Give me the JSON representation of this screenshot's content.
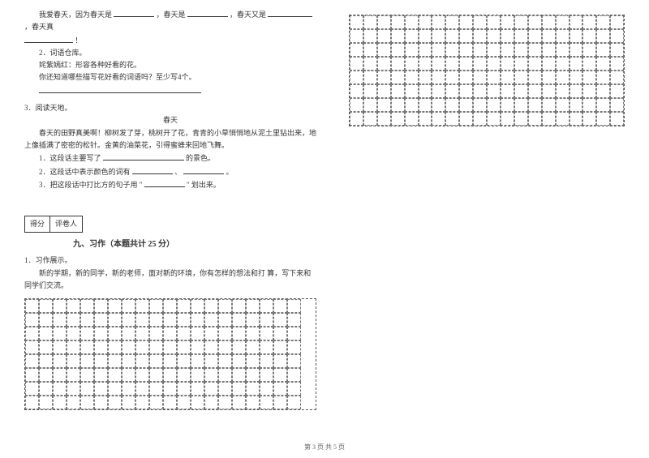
{
  "line1": {
    "prefix": "我爱春天，因为春天是",
    "mid1": "，春天是",
    "mid2": "，春天又是",
    "suffix": "，春天真"
  },
  "line1b": "！",
  "item2_title": "2．词语仓库。",
  "item2_line1": "姹紫嫣红：形容各种好看的花。",
  "item2_line2": "你还知道哪些描写花好看的词语吗？至少写4个。",
  "item3_title": "3．阅读天地。",
  "poem_title": "春天",
  "poem_line1": "春天的田野真美啊！柳树发了芽，桃树开了花，青青的小草悄悄地从泥土里钻出来，地上像插满了密密的松针。金黄的油菜花，引得蜜蜂来回地飞舞。",
  "q1_prefix": "1．这段话主要写了",
  "q1_suffix": "的景色。",
  "q2_prefix": "2．这段话中表示颜色的词有",
  "q2_mid": "、",
  "q2_suffix": "。",
  "q3_prefix": "3．把这段话中打比方的句子用",
  "q3_quote": "\"",
  "q3_suffix": "\" 划出来。",
  "score_label1": "得分",
  "score_label2": "评卷人",
  "section9": "九、习作（本题共计 25 分）",
  "essay1": "1．习作展示。",
  "essay_body": "新的学期，新的同学，新的老师，面对新的环境，你有怎样的想法和打 算，写下来和同学们交流。",
  "footer": "第 3 页 共 5 页",
  "blank_widths": {
    "short": 50,
    "med": 55,
    "long": 60,
    "xlong": 200
  },
  "grid_left": {
    "rows": 8,
    "cols": 20
  },
  "grid_right": {
    "rows": 8,
    "cols": 20
  }
}
